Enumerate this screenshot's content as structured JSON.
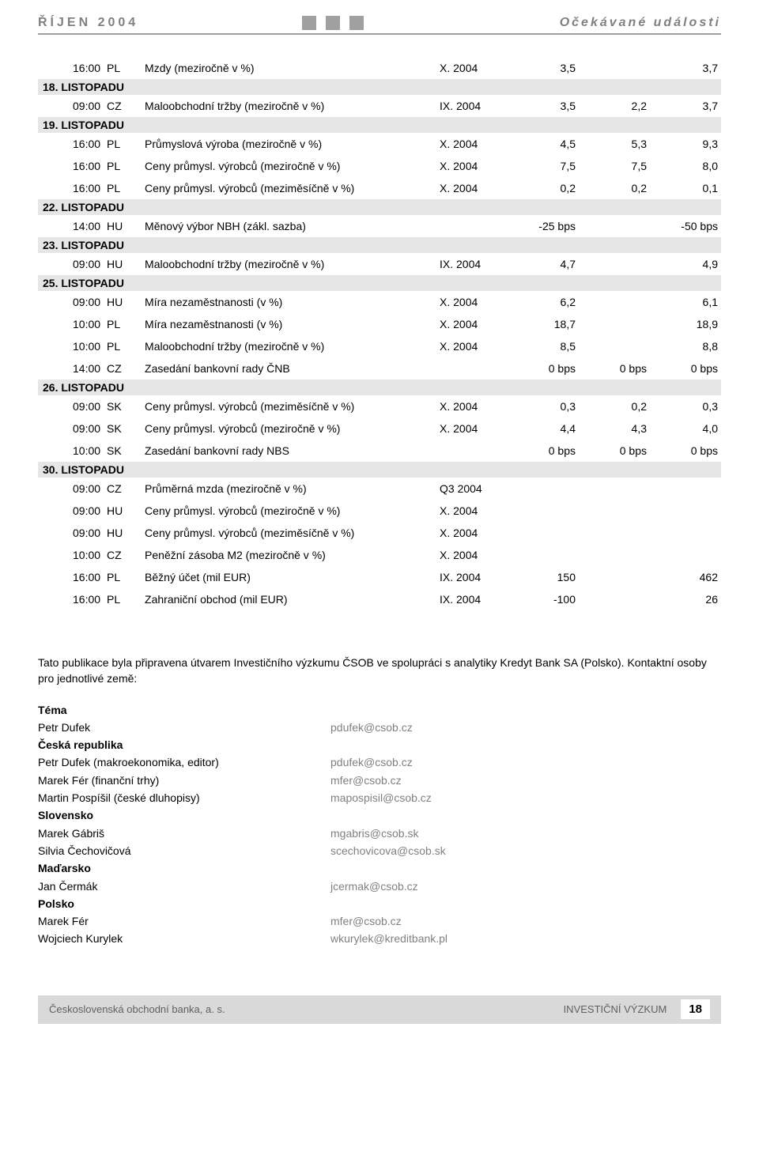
{
  "header": {
    "left": "ŘÍJEN 2004",
    "right": "Očekávané události"
  },
  "sections": [
    {
      "type": "row",
      "time": "16:00",
      "cc": "PL",
      "desc": "Mzdy (meziročně v %)",
      "period": "X. 2004",
      "v1": "3,5",
      "v2": "",
      "v3": "3,7"
    },
    {
      "type": "section",
      "label": "18. LISTOPADU"
    },
    {
      "type": "row",
      "time": "09:00",
      "cc": "CZ",
      "desc": "Maloobchodní tržby (meziročně v %)",
      "period": "IX. 2004",
      "v1": "3,5",
      "v2": "2,2",
      "v3": "3,7"
    },
    {
      "type": "section",
      "label": "19. LISTOPADU"
    },
    {
      "type": "row",
      "time": "16:00",
      "cc": "PL",
      "desc": "Průmyslová výroba (meziročně v %)",
      "period": "X. 2004",
      "v1": "4,5",
      "v2": "5,3",
      "v3": "9,3"
    },
    {
      "type": "row",
      "time": "16:00",
      "cc": "PL",
      "desc": "Ceny průmysl. výrobců (meziročně v %)",
      "period": "X. 2004",
      "v1": "7,5",
      "v2": "7,5",
      "v3": "8,0"
    },
    {
      "type": "row",
      "time": "16:00",
      "cc": "PL",
      "desc": "Ceny průmysl. výrobců (meziměsíčně v %)",
      "period": "X. 2004",
      "v1": "0,2",
      "v2": "0,2",
      "v3": "0,1"
    },
    {
      "type": "section",
      "label": "22. LISTOPADU"
    },
    {
      "type": "row",
      "time": "14:00",
      "cc": "HU",
      "desc": "Měnový výbor NBH (zákl. sazba)",
      "period": "",
      "v1": "-25 bps",
      "v2": "",
      "v3": "-50 bps"
    },
    {
      "type": "section",
      "label": "23. LISTOPADU"
    },
    {
      "type": "row",
      "time": "09:00",
      "cc": "HU",
      "desc": "Maloobchodní tržby (meziročně v %)",
      "period": "IX. 2004",
      "v1": "4,7",
      "v2": "",
      "v3": "4,9"
    },
    {
      "type": "section",
      "label": "25. LISTOPADU"
    },
    {
      "type": "row",
      "time": "09:00",
      "cc": "HU",
      "desc": "Míra nezaměstnanosti (v %)",
      "period": "X. 2004",
      "v1": "6,2",
      "v2": "",
      "v3": "6,1"
    },
    {
      "type": "row",
      "time": "10:00",
      "cc": "PL",
      "desc": "Míra nezaměstnanosti (v %)",
      "period": "X. 2004",
      "v1": "18,7",
      "v2": "",
      "v3": "18,9"
    },
    {
      "type": "row",
      "time": "10:00",
      "cc": "PL",
      "desc": "Maloobchodní tržby (meziročně v %)",
      "period": "X. 2004",
      "v1": "8,5",
      "v2": "",
      "v3": "8,8"
    },
    {
      "type": "row",
      "time": "14:00",
      "cc": "CZ",
      "desc": "Zasedání bankovní rady ČNB",
      "period": "",
      "v1": "0 bps",
      "v2": "0 bps",
      "v3": "0 bps"
    },
    {
      "type": "section",
      "label": "26. LISTOPADU"
    },
    {
      "type": "row",
      "time": "09:00",
      "cc": "SK",
      "desc": "Ceny průmysl. výrobců (meziměsíčně v %)",
      "period": "X. 2004",
      "v1": "0,3",
      "v2": "0,2",
      "v3": "0,3"
    },
    {
      "type": "row",
      "time": "09:00",
      "cc": "SK",
      "desc": "Ceny průmysl. výrobců (meziročně v %)",
      "period": "X. 2004",
      "v1": "4,4",
      "v2": "4,3",
      "v3": "4,0"
    },
    {
      "type": "row",
      "time": "10:00",
      "cc": "SK",
      "desc": "Zasedání bankovní rady NBS",
      "period": "",
      "v1": "0 bps",
      "v2": "0 bps",
      "v3": "0 bps"
    },
    {
      "type": "section",
      "label": "30. LISTOPADU"
    },
    {
      "type": "row",
      "time": "09:00",
      "cc": "CZ",
      "desc": "Průměrná mzda (meziročně v %)",
      "period": "Q3 2004",
      "v1": "",
      "v2": "",
      "v3": ""
    },
    {
      "type": "row",
      "time": "09:00",
      "cc": "HU",
      "desc": "Ceny průmysl. výrobců (meziročně v %)",
      "period": "X. 2004",
      "v1": "",
      "v2": "",
      "v3": ""
    },
    {
      "type": "row",
      "time": "09:00",
      "cc": "HU",
      "desc": "Ceny průmysl. výrobců (meziměsíčně v %)",
      "period": "X. 2004",
      "v1": "",
      "v2": "",
      "v3": ""
    },
    {
      "type": "row",
      "time": "10:00",
      "cc": "CZ",
      "desc": "Peněžní zásoba M2 (meziročně v %)",
      "period": "X. 2004",
      "v1": "",
      "v2": "",
      "v3": ""
    },
    {
      "type": "row",
      "time": "16:00",
      "cc": "PL",
      "desc": "Běžný účet (mil EUR)",
      "period": "IX. 2004",
      "v1": "150",
      "v2": "",
      "v3": "462"
    },
    {
      "type": "row",
      "time": "16:00",
      "cc": "PL",
      "desc": "Zahraniční obchod (mil EUR)",
      "period": "IX. 2004",
      "v1": "-100",
      "v2": "",
      "v3": "26"
    }
  ],
  "footer_intro": "Tato publikace byla připravena útvarem Investičního výzkumu ČSOB ve spolupráci s analytiky Kredyt Bank SA (Polsko). Kontaktní osoby pro jednotlivé země:",
  "contacts": [
    {
      "type": "heading",
      "label": "Téma"
    },
    {
      "type": "row",
      "name": "Petr Dufek",
      "email": "pdufek@csob.cz"
    },
    {
      "type": "heading",
      "label": "Česká republika"
    },
    {
      "type": "row",
      "name": "Petr Dufek (makroekonomika, editor)",
      "email": "pdufek@csob.cz"
    },
    {
      "type": "row",
      "name": "Marek Fér (finanční trhy)",
      "email": "mfer@csob.cz"
    },
    {
      "type": "row",
      "name": "Martin Pospíšil (české dluhopisy)",
      "email": "mapospisil@csob.cz"
    },
    {
      "type": "heading",
      "label": "Slovensko"
    },
    {
      "type": "row",
      "name": "Marek Gábriš",
      "email": "mgabris@csob.sk"
    },
    {
      "type": "row",
      "name": "Silvia Čechovičová",
      "email": "scechovicova@csob.sk"
    },
    {
      "type": "heading",
      "label": "Maďarsko"
    },
    {
      "type": "row",
      "name": "Jan Čermák",
      "email": "jcermak@csob.cz"
    },
    {
      "type": "heading",
      "label": "Polsko"
    },
    {
      "type": "row",
      "name": "Marek Fér",
      "email": "mfer@csob.cz"
    },
    {
      "type": "row",
      "name": "Wojciech Kurylek",
      "email": "wkurylek@kreditbank.pl"
    }
  ],
  "bottom": {
    "left": "Československá obchodní banka, a. s.",
    "right": "INVESTIČNÍ VÝZKUM",
    "page": "18"
  },
  "colors": {
    "header_grey": "#808080",
    "section_bg": "#e6e6e6",
    "email_grey": "#808080",
    "bottombar_bg": "#d9d9d9"
  }
}
